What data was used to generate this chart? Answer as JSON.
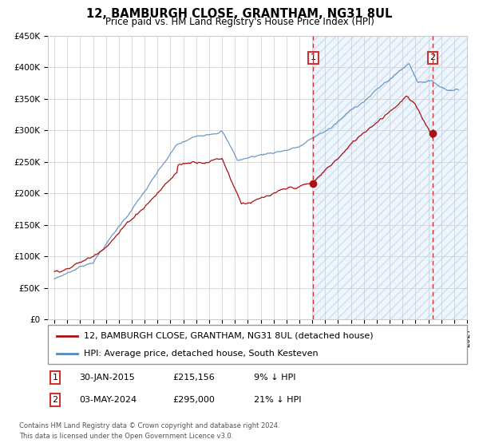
{
  "title": "12, BAMBURGH CLOSE, GRANTHAM, NG31 8UL",
  "subtitle": "Price paid vs. HM Land Registry's House Price Index (HPI)",
  "legend_line1": "12, BAMBURGH CLOSE, GRANTHAM, NG31 8UL (detached house)",
  "legend_line2": "HPI: Average price, detached house, South Kesteven",
  "table_row1": [
    "1",
    "30-JAN-2015",
    "£215,156",
    "9% ↓ HPI"
  ],
  "table_row2": [
    "2",
    "03-MAY-2024",
    "£295,000",
    "21% ↓ HPI"
  ],
  "footnote1": "Contains HM Land Registry data © Crown copyright and database right 2024.",
  "footnote2": "This data is licensed under the Open Government Licence v3.0.",
  "hpi_color": "#5588bb",
  "price_color": "#aa1111",
  "dashed_color": "#cc3333",
  "shade_color": "#ddeeff",
  "marker1_x": 2015.08,
  "marker1_y": 215156,
  "marker2_x": 2024.34,
  "marker2_y": 295000,
  "ylim": [
    0,
    450000
  ],
  "xlim_start": 1994.5,
  "xlim_end": 2027.0,
  "shade_start": 2015.08
}
